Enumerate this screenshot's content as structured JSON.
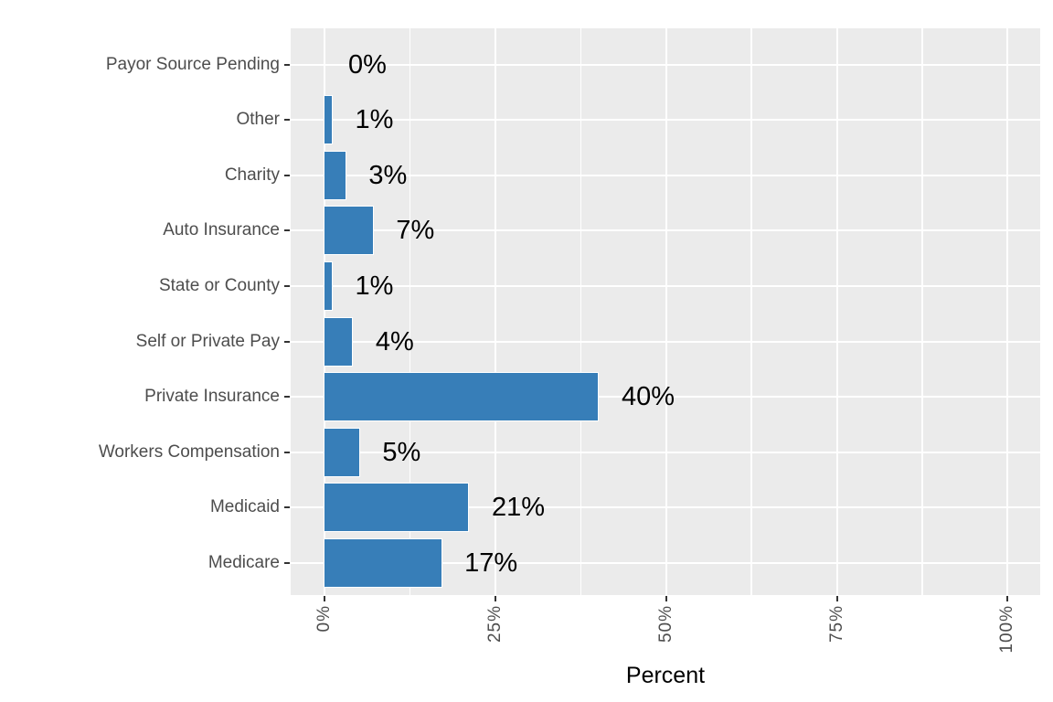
{
  "chart_data": {
    "type": "bar",
    "orientation": "horizontal",
    "categories": [
      "Payor Source Pending",
      "Other",
      "Charity",
      "Auto Insurance",
      "State or County",
      "Self or Private Pay",
      "Private Insurance",
      "Workers Compensation",
      "Medicaid",
      "Medicare"
    ],
    "values": [
      0,
      1,
      3,
      7,
      1,
      4,
      40,
      5,
      21,
      17
    ],
    "value_labels": [
      "0%",
      "1%",
      "3%",
      "7%",
      "1%",
      "4%",
      "40%",
      "5%",
      "21%",
      "17%"
    ],
    "xlabel": "Percent",
    "ylabel": "",
    "title": "",
    "x_axis": {
      "tick_labels": [
        "0%",
        "25%",
        "50%",
        "75%",
        "100%"
      ],
      "tick_values": [
        0,
        25,
        50,
        75,
        100
      ],
      "minor_tick_values": [
        12.5,
        37.5,
        62.5,
        87.5
      ],
      "range": [
        0,
        100
      ]
    },
    "legend": "none",
    "grid": "on",
    "style": {
      "bar_fill": "#377EB8",
      "bar_stroke": "#FFFFFF",
      "panel_background": "#EBEBEB",
      "grid_color": "#FFFFFF",
      "axis_text_color": "#4D4D4D",
      "value_label_color": "#000000",
      "axis_title_color": "#000000",
      "tick_mark_color": "#333333",
      "figure_background": "#FFFFFF"
    }
  }
}
